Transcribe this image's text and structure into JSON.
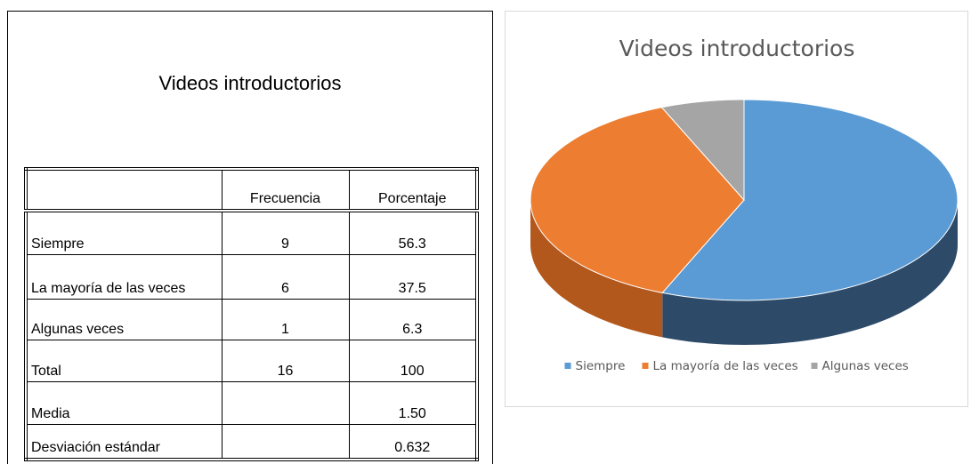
{
  "table": {
    "title": "Videos introductorios",
    "header": [
      null,
      "Frecuencia",
      "Porcentaje"
    ],
    "rows": [
      [
        "Siempre",
        "9",
        "56.3"
      ],
      [
        "La mayoría de las veces",
        "6",
        "37.5"
      ],
      [
        "Algunas veces",
        "1",
        "6.3"
      ],
      [
        "Total",
        "16",
        "100"
      ],
      [
        "Media",
        null,
        "1.50"
      ],
      [
        "Desviación estándar",
        null,
        "0.632"
      ]
    ]
  },
  "chart_data": {
    "type": "pie",
    "title": "Videos introductorios",
    "categories": [
      "Siempre",
      "La mayoría de las veces",
      "Algunas veces"
    ],
    "values": [
      56.3,
      37.5,
      6.3
    ],
    "colors": [
      "#5b9bd5",
      "#ed7d31",
      "#a5a5a5"
    ],
    "side_colors": [
      "#2d4a68",
      "#b3581c",
      "#7a7a7a"
    ],
    "legend": "bottom"
  }
}
